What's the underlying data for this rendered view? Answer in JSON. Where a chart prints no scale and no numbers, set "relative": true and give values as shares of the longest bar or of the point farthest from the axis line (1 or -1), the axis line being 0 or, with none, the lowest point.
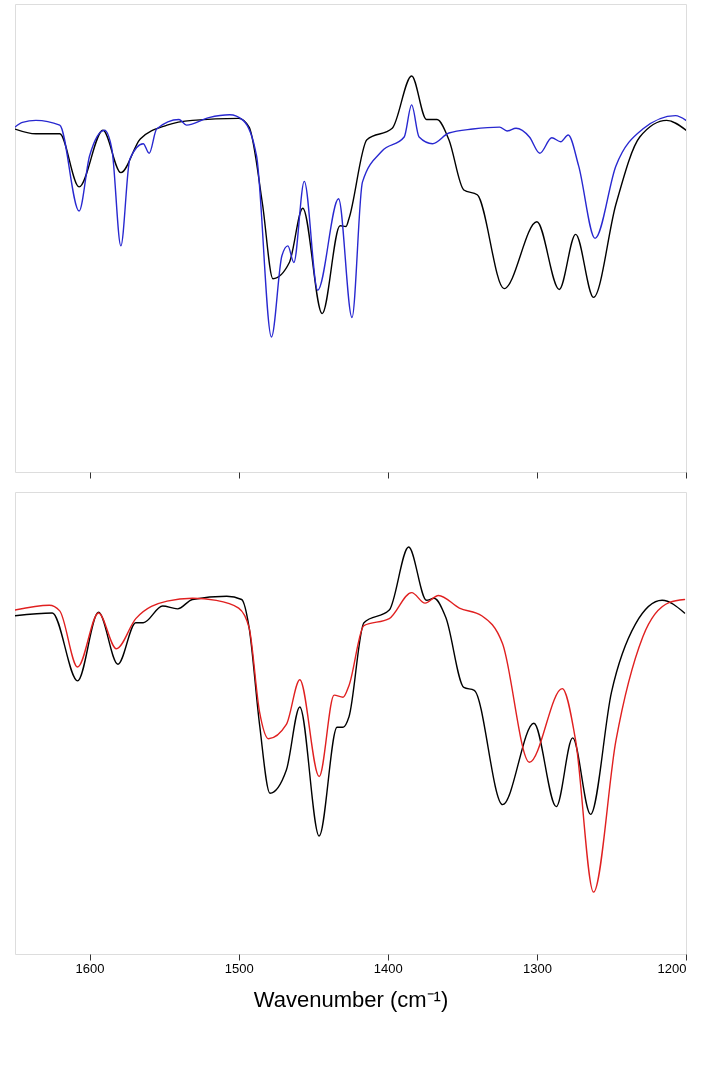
{
  "chart_data": [
    {
      "type": "line",
      "relative": true,
      "xlim": [
        1650,
        1200
      ],
      "xticks": [
        1600,
        1500,
        1400,
        1300,
        1200
      ],
      "tick_labels": false,
      "series": [
        {
          "color": "#000000",
          "x": [
            1650,
            1636,
            1620,
            1607,
            1591,
            1579,
            1566,
            1548,
            1531,
            1500,
            1493,
            1484,
            1477,
            1466,
            1457,
            1444,
            1432,
            1428,
            1426,
            1414,
            1397,
            1384,
            1374,
            1367,
            1359,
            1349,
            1340,
            1322,
            1300,
            1285,
            1274,
            1262,
            1247,
            1231,
            1213,
            1200
          ],
          "values": [
            0.866,
            0.854,
            0.854,
            0.72,
            0.863,
            0.756,
            0.841,
            0.876,
            0.888,
            0.893,
            0.871,
            0.676,
            0.488,
            0.529,
            0.666,
            0.4,
            0.622,
            0.62,
            0.64,
            0.839,
            0.868,
            1.0,
            0.89,
            0.89,
            0.839,
            0.712,
            0.7,
            0.463,
            0.632,
            0.461,
            0.6,
            0.441,
            0.676,
            0.846,
            0.888,
            0.863
          ]
        },
        {
          "color": "#2828d0",
          "x": [
            1650,
            1645,
            1636,
            1620,
            1607,
            1600,
            1590,
            1585,
            1579,
            1573,
            1564,
            1560,
            1555,
            1540,
            1535,
            1520,
            1506,
            1497,
            1488,
            1478,
            1471,
            1467,
            1463,
            1456,
            1447,
            1433,
            1424,
            1417,
            1404,
            1389,
            1384,
            1379,
            1370,
            1359,
            1343,
            1325,
            1320,
            1314,
            1305,
            1298,
            1290,
            1284,
            1279,
            1272,
            1261,
            1247,
            1229,
            1207,
            1200
          ],
          "values": [
            0.871,
            0.883,
            0.888,
            0.876,
            0.659,
            0.798,
            0.863,
            0.815,
            0.571,
            0.79,
            0.829,
            0.805,
            0.866,
            0.89,
            0.876,
            0.895,
            0.902,
            0.888,
            0.798,
            0.341,
            0.546,
            0.571,
            0.529,
            0.734,
            0.459,
            0.69,
            0.39,
            0.732,
            0.81,
            0.846,
            0.927,
            0.846,
            0.829,
            0.856,
            0.866,
            0.871,
            0.861,
            0.868,
            0.846,
            0.805,
            0.844,
            0.834,
            0.851,
            0.773,
            0.59,
            0.773,
            0.866,
            0.9,
            0.888
          ]
        }
      ]
    },
    {
      "type": "line",
      "relative": true,
      "xlim": [
        1650,
        1200
      ],
      "xticks": [
        1600,
        1500,
        1400,
        1300,
        1200
      ],
      "tick_labels": "x",
      "xlabel": "Wavenumber (cm⁻¹)",
      "series": [
        {
          "color": "#000000",
          "x": [
            1650,
            1625,
            1608,
            1594,
            1581,
            1569,
            1564,
            1551,
            1541,
            1531,
            1508,
            1498,
            1493,
            1486,
            1479,
            1468,
            1459,
            1446,
            1434,
            1430,
            1426,
            1416,
            1399,
            1386,
            1374,
            1369,
            1361,
            1349,
            1342,
            1323,
            1302,
            1287,
            1276,
            1264,
            1250,
            1234,
            1216,
            1201
          ],
          "values": [
            0.831,
            0.838,
            0.671,
            0.84,
            0.712,
            0.814,
            0.814,
            0.855,
            0.848,
            0.871,
            0.879,
            0.871,
            0.802,
            0.564,
            0.395,
            0.452,
            0.607,
            0.29,
            0.557,
            0.557,
            0.583,
            0.814,
            0.845,
            1.0,
            0.869,
            0.874,
            0.826,
            0.655,
            0.648,
            0.367,
            0.567,
            0.362,
            0.531,
            0.343,
            0.643,
            0.81,
            0.869,
            0.838
          ]
        },
        {
          "color": "#e02020",
          "x": [
            1650,
            1627,
            1620,
            1608,
            1594,
            1582,
            1569,
            1548,
            1531,
            1515,
            1500,
            1493,
            1486,
            1480,
            1468,
            1459,
            1446,
            1436,
            1430,
            1426,
            1416,
            1399,
            1384,
            1375,
            1366,
            1352,
            1337,
            1323,
            1305,
            1283,
            1274,
            1262,
            1247,
            1229,
            1211,
            1201
          ],
          "values": [
            0.845,
            0.857,
            0.843,
            0.705,
            0.838,
            0.75,
            0.824,
            0.867,
            0.874,
            0.869,
            0.85,
            0.802,
            0.595,
            0.529,
            0.564,
            0.674,
            0.436,
            0.636,
            0.631,
            0.66,
            0.807,
            0.824,
            0.888,
            0.862,
            0.881,
            0.85,
            0.831,
            0.762,
            0.471,
            0.652,
            0.524,
            0.152,
            0.524,
            0.779,
            0.864,
            0.871
          ]
        }
      ]
    }
  ]
}
